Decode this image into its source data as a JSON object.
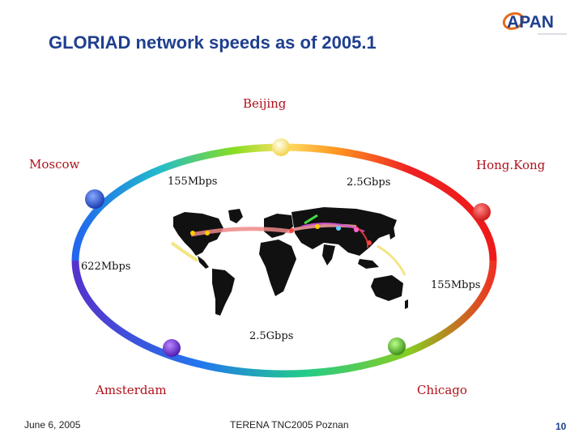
{
  "title": "GLORIAD network speeds as of  2005.1",
  "logo": {
    "text": "APAN"
  },
  "cities": {
    "beijing": "Beijing",
    "moscow": "Moscow",
    "hongkong": "Hong.Kong",
    "amsterdam": "Amsterdam",
    "chicago": "Chicago"
  },
  "links": {
    "moscow_beijing": "155Mbps",
    "beijing_hongkong": "2.5Gbps",
    "moscow_amsterdam": "622Mbps",
    "hongkong_chicago": "155Mbps",
    "amsterdam_chicago": "2.5Gbps"
  },
  "footer": {
    "date": "June 6, 2005",
    "event": "TERENA TNC2005 Poznan",
    "page": "10"
  },
  "colors": {
    "title": "#1f3f8f",
    "city_label": "#b0101a",
    "ring": [
      "#ffe066",
      "#88dd22",
      "#22cc99",
      "#2277ee",
      "#6633cc",
      "#aa33cc",
      "#ee2222"
    ]
  }
}
